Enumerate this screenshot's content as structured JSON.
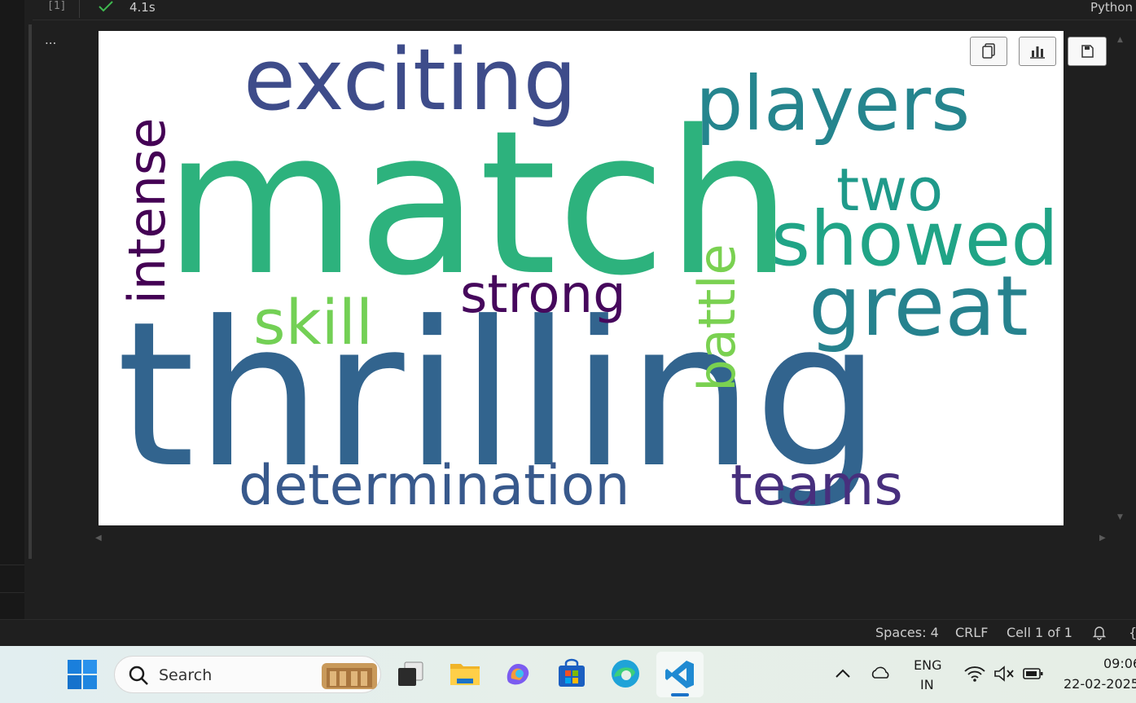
{
  "cell": {
    "execution_count": "[1]",
    "exec_time": "4.1s",
    "kernel": "Python",
    "more_label": "..."
  },
  "wordcloud": {
    "words": [
      {
        "text": "match",
        "color": "#2db27d"
      },
      {
        "text": "thrilling",
        "color": "#32648e"
      },
      {
        "text": "exciting",
        "color": "#3e4c8a"
      },
      {
        "text": "players",
        "color": "#25858e"
      },
      {
        "text": "intense",
        "color": "#440154"
      },
      {
        "text": "two",
        "color": "#1f9a8a"
      },
      {
        "text": "showed",
        "color": "#20a486"
      },
      {
        "text": "great",
        "color": "#26828e"
      },
      {
        "text": "strong",
        "color": "#46085c"
      },
      {
        "text": "skill",
        "color": "#73d055"
      },
      {
        "text": "battle",
        "color": "#7ad151"
      },
      {
        "text": "determination",
        "color": "#38598c"
      },
      {
        "text": "teams",
        "color": "#472f7d"
      }
    ]
  },
  "output_toolbar": {
    "copy": "copy-icon",
    "chart": "bar-chart-icon",
    "save": "save-icon"
  },
  "statusbar": {
    "spaces": "Spaces: 4",
    "eol": "CRLF",
    "cell": "Cell 1 of 1",
    "braces": "{"
  },
  "taskbar": {
    "search_placeholder": "Search",
    "lang_top": "ENG",
    "lang_bottom": "IN",
    "time": "09:06",
    "date": "22-02-2025"
  }
}
